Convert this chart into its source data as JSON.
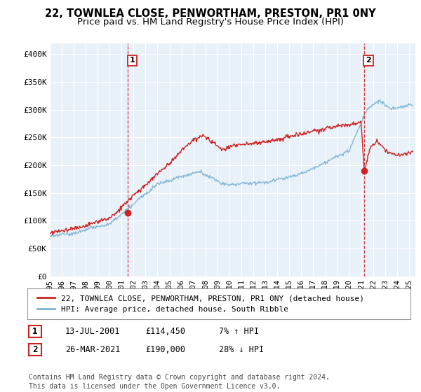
{
  "title": "22, TOWNLEA CLOSE, PENWORTHAM, PRESTON, PR1 0NY",
  "subtitle": "Price paid vs. HM Land Registry's House Price Index (HPI)",
  "ylabel_ticks": [
    "£0",
    "£50K",
    "£100K",
    "£150K",
    "£200K",
    "£250K",
    "£300K",
    "£350K",
    "£400K"
  ],
  "ytick_values": [
    0,
    50000,
    100000,
    150000,
    200000,
    250000,
    300000,
    350000,
    400000
  ],
  "ylim": [
    0,
    420000
  ],
  "xlim_start": 1995.0,
  "xlim_end": 2025.5,
  "hpi_color": "#7ab3d4",
  "price_color": "#cc2222",
  "vline_color": "#cc2222",
  "background_color": "#ffffff",
  "plot_bg_color": "#e8f0f8",
  "grid_color": "#ffffff",
  "legend_label_price": "22, TOWNLEA CLOSE, PENWORTHAM, PRESTON, PR1 0NY (detached house)",
  "legend_label_hpi": "HPI: Average price, detached house, South Ribble",
  "annotation1_label": "1",
  "annotation1_date": "13-JUL-2001",
  "annotation1_price": "£114,450",
  "annotation1_pct": "7% ↑ HPI",
  "annotation1_year": 2001.53,
  "annotation1_value": 114450,
  "annotation2_label": "2",
  "annotation2_date": "26-MAR-2021",
  "annotation2_price": "£190,000",
  "annotation2_pct": "28% ↓ HPI",
  "annotation2_year": 2021.23,
  "annotation2_value": 190000,
  "footer": "Contains HM Land Registry data © Crown copyright and database right 2024.\nThis data is licensed under the Open Government Licence v3.0.",
  "title_fontsize": 10.5,
  "subtitle_fontsize": 9.5,
  "tick_fontsize": 8,
  "legend_fontsize": 8,
  "footer_fontsize": 7
}
